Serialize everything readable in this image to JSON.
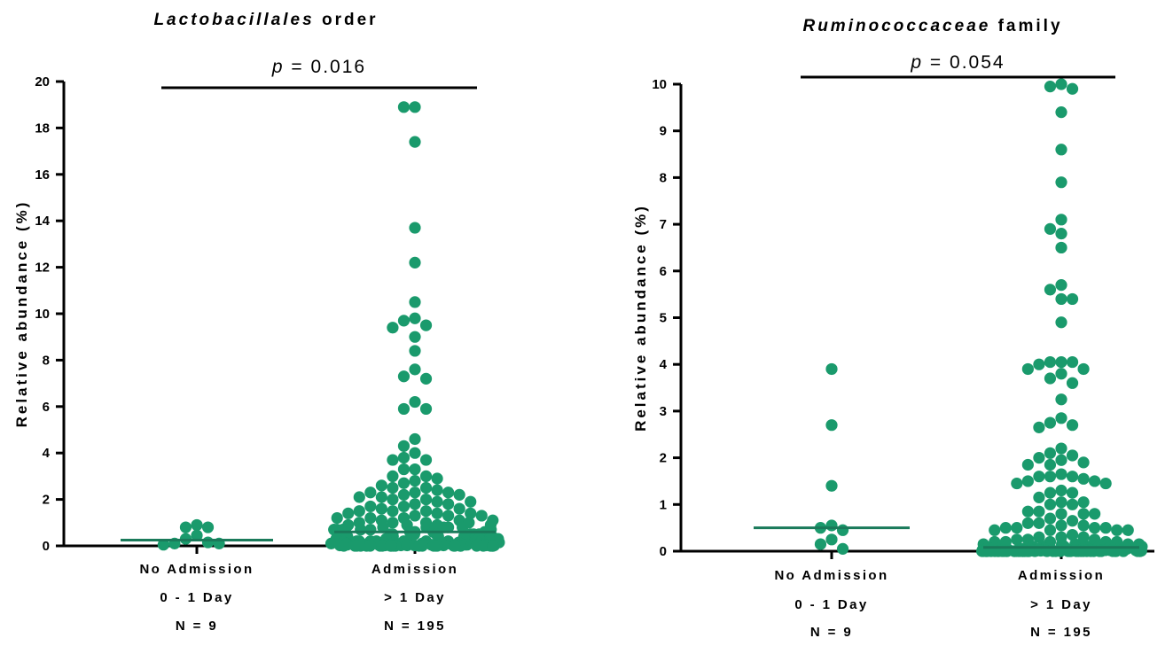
{
  "chart_data": [
    {
      "type": "scatter",
      "title_italic": "Lactobacillales",
      "title_rest": "order",
      "ylabel": "Relative abundance (%)",
      "ylim": [
        0,
        20
      ],
      "yticks": [
        "0",
        "2",
        "4",
        "6",
        "8",
        "10",
        "12",
        "14",
        "16",
        "18",
        "20"
      ],
      "categories": [
        {
          "lines": [
            "No Admission",
            "0 - 1 Day",
            "N = 9"
          ],
          "median": 0.25
        },
        {
          "lines": [
            "Admission",
            "> 1 Day",
            "N = 195"
          ],
          "median": 0.6
        }
      ],
      "annotation": {
        "p_letter": "p",
        "p_value": "= 0.016"
      },
      "marker_color": "#1a9a6c",
      "series": [
        {
          "x": 0,
          "y": [
            0.8,
            0.3,
            0.1,
            0.05,
            0.15,
            0.9,
            0.1,
            0.45,
            0.8
          ]
        },
        {
          "x": 1,
          "y": [
            18.9,
            18.9,
            17.4,
            13.7,
            12.2,
            10.5,
            9.8,
            9.5,
            9.7,
            9.4,
            9.0,
            8.4,
            7.6,
            7.3,
            7.2,
            6.2,
            5.9,
            5.9,
            4.6,
            4.3,
            4.0,
            3.8,
            3.7,
            3.7,
            3.3,
            3.3,
            3.0,
            3.0,
            2.9,
            2.8,
            2.7,
            2.6,
            2.5,
            2.5,
            2.4,
            2.3,
            2.3,
            2.3,
            2.2,
            2.2,
            2.1,
            2.1,
            2.0,
            2.0,
            1.9,
            1.9,
            1.8,
            1.8,
            1.7,
            1.7,
            1.6,
            1.6,
            1.5,
            1.5,
            1.5,
            1.4,
            1.4,
            1.4,
            1.3,
            1.3,
            1.3,
            1.2,
            1.2,
            1.2,
            1.1,
            1.1,
            1.1,
            1.0,
            1.0,
            1.0,
            1.0,
            0.9,
            0.9,
            0.9,
            0.9,
            0.8,
            0.8,
            0.8,
            0.8,
            0.8,
            0.7,
            0.7,
            0.7,
            0.7,
            0.7,
            0.7,
            0.6,
            0.6,
            0.6,
            0.6,
            0.6,
            0.6,
            0.5,
            0.5,
            0.5,
            0.5,
            0.5,
            0.5,
            0.5,
            0.4,
            0.4,
            0.4,
            0.4,
            0.4,
            0.4,
            0.4,
            0.4,
            0.3,
            0.3,
            0.3,
            0.3,
            0.3,
            0.3,
            0.3,
            0.3,
            0.3,
            0.2,
            0.2,
            0.2,
            0.2,
            0.2,
            0.2,
            0.2,
            0.2,
            0.2,
            0.2,
            0.15,
            0.15,
            0.15,
            0.15,
            0.15,
            0.15,
            0.15,
            0.15,
            0.15,
            0.15,
            0.1,
            0.1,
            0.1,
            0.1,
            0.1,
            0.1,
            0.1,
            0.1,
            0.1,
            0.1,
            0.1,
            0.1,
            0.05,
            0.05,
            0.05,
            0.05,
            0.05,
            0.05,
            0.05,
            0.05,
            0.05,
            0.05,
            0.05,
            0.05,
            0.02,
            0.02,
            0.02,
            0.02,
            0.02,
            0.02,
            0.02,
            0.02,
            0.02,
            0.02,
            0.02,
            0.02,
            0.02,
            0.02,
            0.0,
            0.0,
            0.0,
            0.0,
            0.0,
            0.0,
            0.0,
            0.0,
            0.0,
            0.0,
            0.0,
            0.0,
            0.0,
            0.0,
            0.0,
            0.0,
            0.0,
            0.0,
            0.0,
            0.0,
            0.0,
            0.0,
            0.0,
            0.0,
            0.0,
            0.0,
            0.0
          ]
        }
      ]
    },
    {
      "type": "scatter",
      "title_italic": "Ruminococcaceae",
      "title_rest": "family",
      "ylabel": "Relative abundance (%)",
      "ylim": [
        0,
        10
      ],
      "yticks": [
        "0",
        "1",
        "2",
        "3",
        "4",
        "5",
        "6",
        "7",
        "8",
        "9",
        "10"
      ],
      "categories": [
        {
          "lines": [
            "No Admission",
            "0 - 1 Day",
            "N = 9"
          ],
          "median": 0.5
        },
        {
          "lines": [
            "Admission",
            "> 1 Day",
            "N = 195"
          ],
          "median": 0.08
        }
      ],
      "annotation": {
        "p_letter": "p",
        "p_value": "= 0.054"
      },
      "marker_color": "#1a9a6c",
      "series": [
        {
          "x": 0,
          "y": [
            3.9,
            2.7,
            1.4,
            0.5,
            0.45,
            0.25,
            0.15,
            0.05,
            0.55
          ]
        },
        {
          "x": 1,
          "y": [
            9.95,
            9.9,
            10.0,
            9.4,
            8.6,
            7.9,
            7.1,
            6.9,
            6.8,
            6.5,
            5.7,
            5.4,
            5.4,
            5.6,
            4.9,
            4.05,
            4.0,
            3.9,
            3.8,
            3.9,
            4.05,
            4.05,
            3.7,
            3.6,
            3.25,
            2.85,
            2.7,
            2.65,
            2.75,
            2.2,
            2.1,
            2.05,
            1.9,
            1.85,
            1.85,
            1.95,
            2.0,
            1.6,
            1.6,
            1.55,
            1.5,
            1.45,
            1.45,
            1.5,
            1.6,
            1.65,
            1.3,
            1.25,
            1.15,
            1.05,
            1.0,
            1.0,
            1.05,
            1.25,
            0.85,
            0.8,
            0.8,
            0.85,
            0.8,
            0.7,
            0.65,
            0.6,
            0.55,
            0.5,
            0.5,
            0.45,
            0.45,
            0.45,
            0.45,
            0.5,
            0.5,
            0.55,
            0.6,
            0.35,
            0.3,
            0.3,
            0.3,
            0.25,
            0.25,
            0.25,
            0.2,
            0.2,
            0.2,
            0.2,
            0.2,
            0.15,
            0.15,
            0.15,
            0.15,
            0.15,
            0.15,
            0.1,
            0.1,
            0.1,
            0.1,
            0.1,
            0.1,
            0.1,
            0.08,
            0.08,
            0.08,
            0.08,
            0.08,
            0.08,
            0.08,
            0.08,
            0.05,
            0.05,
            0.05,
            0.05,
            0.05,
            0.05,
            0.05,
            0.05,
            0.05,
            0.05,
            0.05,
            0.03,
            0.03,
            0.03,
            0.03,
            0.03,
            0.03,
            0.03,
            0.03,
            0.03,
            0.03,
            0.03,
            0.03,
            0.02,
            0.02,
            0.02,
            0.02,
            0.02,
            0.02,
            0.02,
            0.02,
            0.02,
            0.02,
            0.02,
            0.02,
            0.02,
            0.01,
            0.01,
            0.01,
            0.01,
            0.01,
            0.01,
            0.01,
            0.01,
            0.01,
            0.01,
            0.01,
            0.01,
            0.01,
            0.01,
            0.0,
            0.0,
            0.0,
            0.0,
            0.0,
            0.0,
            0.0,
            0.0,
            0.0,
            0.0,
            0.0,
            0.0,
            0.0,
            0.0,
            0.0,
            0.0,
            0.0,
            0.0,
            0.0,
            0.0,
            0.0,
            0.0,
            0.0,
            0.0,
            0.0,
            0.0,
            0.0,
            0.0,
            0.0,
            0.0,
            0.0,
            0.0,
            0.0,
            0.0,
            0.0,
            0.0,
            0.0,
            0.0,
            0.0,
            0.0,
            0.0,
            0.0,
            0.0,
            0.0,
            0.0,
            0.0,
            0.0,
            0.0,
            0.0,
            0.0
          ]
        }
      ]
    }
  ]
}
